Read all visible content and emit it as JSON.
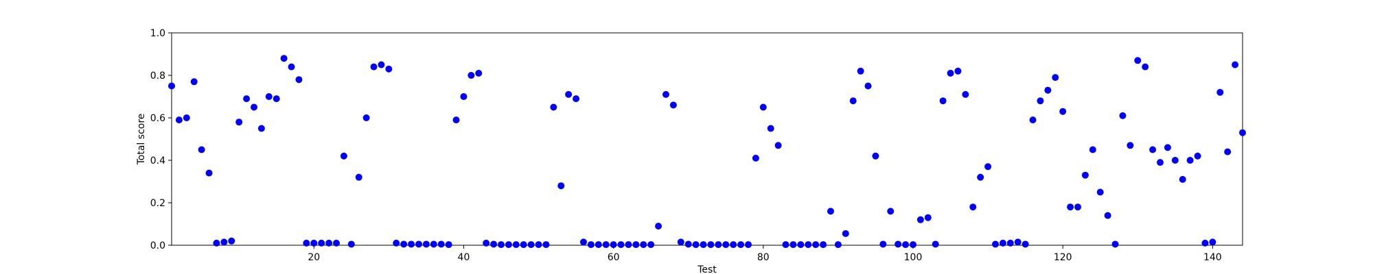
{
  "chart_data": {
    "type": "scatter",
    "title": "",
    "xlabel": "Test",
    "ylabel": "Total score",
    "xlim": [
      1,
      144
    ],
    "ylim": [
      0,
      1.0
    ],
    "x_ticks": [
      20,
      40,
      60,
      80,
      100,
      120,
      140
    ],
    "x_tick_labels": [
      "20",
      "40",
      "60",
      "80",
      "100",
      "120",
      "140"
    ],
    "y_ticks": [
      0,
      0.2,
      0.4,
      0.6,
      0.8,
      1.0
    ],
    "y_tick_labels": [
      "0.0",
      "0.2",
      "0.4",
      "0.6",
      "0.8",
      "1.0"
    ],
    "grid": false,
    "marker_color": "#0000ff",
    "x": [
      1,
      2,
      3,
      4,
      5,
      6,
      7,
      8,
      9,
      10,
      11,
      12,
      13,
      14,
      15,
      16,
      17,
      18,
      19,
      20,
      21,
      22,
      23,
      24,
      25,
      26,
      27,
      28,
      29,
      30,
      31,
      32,
      33,
      34,
      35,
      36,
      37,
      38,
      39,
      40,
      41,
      42,
      43,
      44,
      45,
      46,
      47,
      48,
      49,
      50,
      51,
      52,
      53,
      54,
      55,
      56,
      57,
      58,
      59,
      60,
      61,
      62,
      63,
      64,
      65,
      66,
      67,
      68,
      69,
      70,
      71,
      72,
      73,
      74,
      75,
      76,
      77,
      78,
      79,
      80,
      81,
      82,
      83,
      84,
      85,
      86,
      87,
      88,
      89,
      90,
      91,
      92,
      93,
      94,
      95,
      96,
      97,
      98,
      99,
      100,
      101,
      102,
      103,
      104,
      105,
      106,
      107,
      108,
      109,
      110,
      111,
      112,
      113,
      114,
      115,
      116,
      117,
      118,
      119,
      120,
      121,
      122,
      123,
      124,
      125,
      126,
      127,
      128,
      129,
      130,
      131,
      132,
      133,
      134,
      135,
      136,
      137,
      138,
      139,
      140,
      141,
      142,
      143,
      144
    ],
    "y": [
      0.75,
      0.59,
      0.6,
      0.77,
      0.45,
      0.34,
      0.01,
      0.015,
      0.02,
      0.58,
      0.69,
      0.65,
      0.55,
      0.7,
      0.69,
      0.88,
      0.84,
      0.78,
      0.01,
      0.01,
      0.01,
      0.01,
      0.01,
      0.42,
      0.005,
      0.32,
      0.6,
      0.84,
      0.85,
      0.83,
      0.01,
      0.005,
      0.005,
      0.005,
      0.005,
      0.005,
      0.005,
      0.003,
      0.59,
      0.7,
      0.8,
      0.81,
      0.01,
      0.005,
      0.003,
      0.003,
      0.003,
      0.003,
      0.003,
      0.003,
      0.003,
      0.65,
      0.28,
      0.71,
      0.69,
      0.015,
      0.003,
      0.003,
      0.003,
      0.003,
      0.003,
      0.003,
      0.003,
      0.003,
      0.003,
      0.09,
      0.71,
      0.66,
      0.015,
      0.005,
      0.003,
      0.003,
      0.003,
      0.003,
      0.003,
      0.003,
      0.003,
      0.003,
      0.41,
      0.65,
      0.55,
      0.47,
      0.003,
      0.003,
      0.003,
      0.003,
      0.003,
      0.003,
      0.16,
      0.003,
      0.055,
      0.68,
      0.82,
      0.75,
      0.42,
      0.005,
      0.16,
      0.005,
      0.003,
      0.003,
      0.12,
      0.13,
      0.005,
      0.68,
      0.81,
      0.82,
      0.71,
      0.18,
      0.32,
      0.37,
      0.005,
      0.01,
      0.01,
      0.015,
      0.005,
      0.59,
      0.68,
      0.73,
      0.79,
      0.63,
      0.18,
      0.18,
      0.33,
      0.45,
      0.25,
      0.14,
      0.005,
      0.61,
      0.47,
      0.87,
      0.84,
      0.45,
      0.39,
      0.46,
      0.4,
      0.31,
      0.4,
      0.42,
      0.01,
      0.015,
      0.72,
      0.44,
      0.85,
      0.53
    ]
  }
}
